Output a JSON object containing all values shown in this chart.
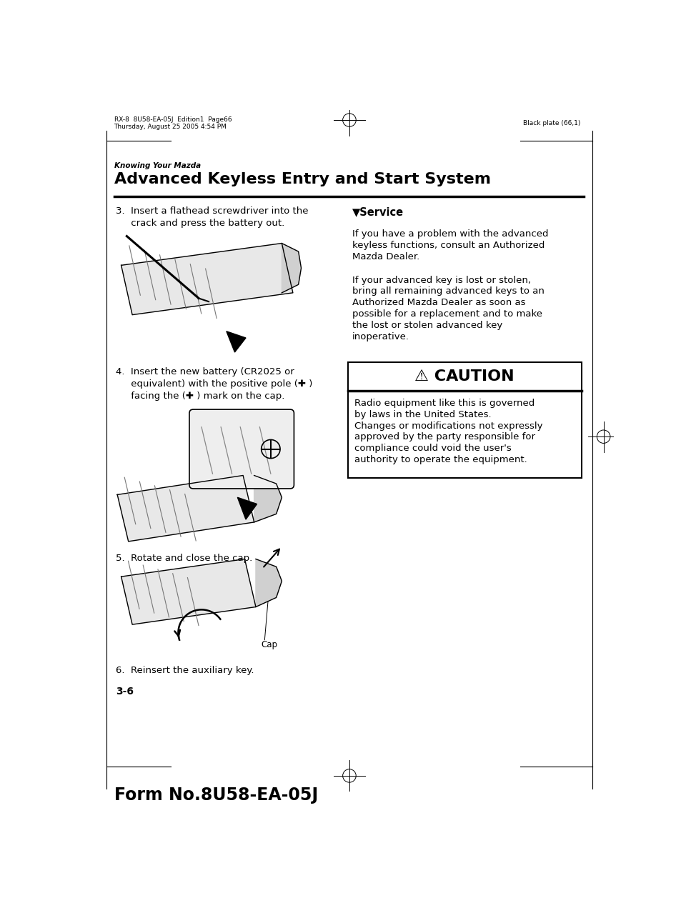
{
  "bg_color": "#ffffff",
  "page_width": 9.54,
  "page_height": 12.85,
  "header_left_line1": "RX-8  8U58-EA-05J  Edition1  Page66",
  "header_left_line2": "Thursday, August 25 2005 4:54 PM",
  "header_right": "Black plate (66,1)",
  "section_label": "Knowing Your Mazda",
  "section_title": "Advanced Keyless Entry and Start System",
  "step3_text_a": "3.  Insert a flathead screwdriver into the",
  "step3_text_b": "     crack and press the battery out.",
  "step4_text_a": "4.  Insert the new battery (CR2025 or",
  "step4_text_b": "     equivalent) with the positive pole (✚ )",
  "step4_text_c": "     facing the (✚ ) mark on the cap.",
  "step5_text": "5.  Rotate and close the cap.",
  "step6_text": "6.  Reinsert the auxiliary key.",
  "page_num": "3-6",
  "form_num": "Form No.8U58-EA-05J",
  "service_title": "▼Service",
  "service_text1a": "If you have a problem with the advanced",
  "service_text1b": "keyless functions, consult an Authorized",
  "service_text1c": "Mazda Dealer.",
  "service_text2a": "If your advanced key is lost or stolen,",
  "service_text2b": "bring all remaining advanced keys to an",
  "service_text2c": "Authorized Mazda Dealer as soon as",
  "service_text2d": "possible for a replacement and to make",
  "service_text2e": "the lost or stolen advanced key",
  "service_text2f": "inoperative.",
  "caution_title": "⚠ CAUTION",
  "caution_body_lines": [
    "Radio equipment like this is governed",
    "by laws in the United States.",
    "Changes or modifications not expressly",
    "approved by the party responsible for",
    "compliance could void the user's",
    "authority to operate the equipment."
  ],
  "cap_label": "Cap"
}
